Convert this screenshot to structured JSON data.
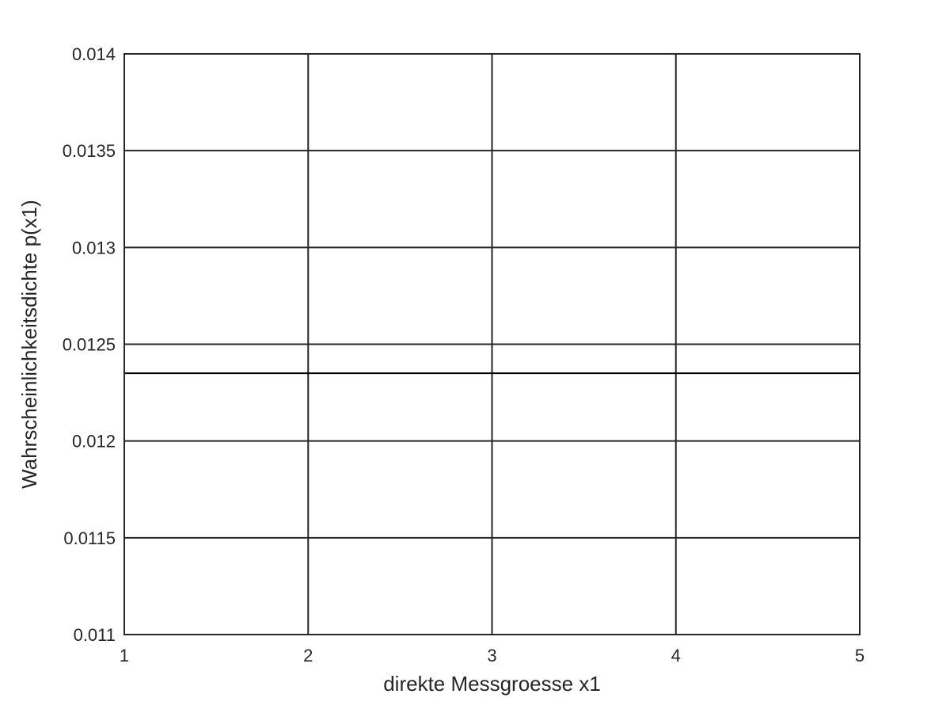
{
  "chart_data": {
    "type": "line",
    "title": "",
    "xlabel": "direkte Messgroesse x1",
    "ylabel": "Wahrscheinlichkeitsdichte p(x1)",
    "xlim": [
      1,
      5
    ],
    "ylim": [
      0.011,
      0.014
    ],
    "x_ticks": [
      1,
      2,
      3,
      4,
      5
    ],
    "x_tick_labels": [
      "1",
      "2",
      "3",
      "4",
      "5"
    ],
    "y_ticks": [
      0.011,
      0.0115,
      0.012,
      0.0125,
      0.013,
      0.0135,
      0.014
    ],
    "y_tick_labels": [
      "0.011",
      "0.0115",
      "0.012",
      "0.0125",
      "0.013",
      "0.0135",
      "0.014"
    ],
    "grid": true,
    "legend": "none",
    "series": [
      {
        "x": [
          1,
          5
        ],
        "y": [
          0.01235,
          0.01235
        ],
        "color": "#000000"
      }
    ],
    "colors": {
      "axis": "#262626",
      "grid": "#262626",
      "line": "#000000",
      "background": "#ffffff"
    }
  }
}
